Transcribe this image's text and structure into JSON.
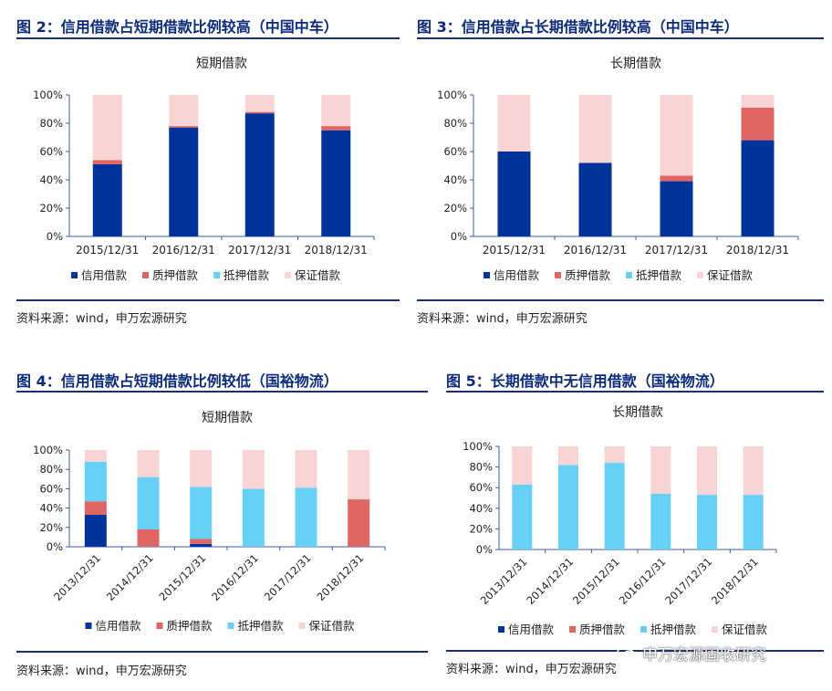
{
  "colors": {
    "title": "#0b2a7a",
    "rule": "#1b2f6e",
    "axis": "#3b5bab",
    "series": [
      "#003399",
      "#e06666",
      "#66d1f5",
      "#f9d4d4"
    ]
  },
  "panels": [
    {
      "fig_title": "图 2：信用借款占短期借款比例较高（中国中车）",
      "source": "资料来源：wind，申万宏源研究"
    },
    {
      "fig_title": "图 3：信用借款占长期借款比例较高（中国中车）",
      "source": "资料来源：wind，申万宏源研究"
    },
    {
      "fig_title": "图 4：信用借款占短期借款比例较低（国裕物流）",
      "source": "资料来源：wind，申万宏源研究"
    },
    {
      "fig_title": "图 5：长期借款中无信用借款（国裕物流）",
      "source": "资料来源：wind，申万宏源研究"
    }
  ],
  "watermark": "申万宏源固收研究",
  "chart_data": [
    {
      "type": "bar",
      "stacked": true,
      "title": "短期借款",
      "categories": [
        "2015/12/31",
        "2016/12/31",
        "2017/12/31",
        "2018/12/31"
      ],
      "y_ticks": [
        "0%",
        "20%",
        "40%",
        "60%",
        "80%",
        "100%"
      ],
      "ylim": [
        0,
        100
      ],
      "series": [
        {
          "name": "信用借款",
          "values": [
            51,
            77,
            87,
            75
          ]
        },
        {
          "name": "质押借款",
          "values": [
            3,
            1,
            1,
            3
          ]
        },
        {
          "name": "抵押借款",
          "values": [
            0,
            0,
            0,
            0
          ]
        },
        {
          "name": "保证借款",
          "values": [
            46,
            22,
            12,
            22
          ]
        }
      ],
      "legend": "bottom",
      "grid": false
    },
    {
      "type": "bar",
      "stacked": true,
      "title": "长期借款",
      "categories": [
        "2015/12/31",
        "2016/12/31",
        "2017/12/31",
        "2018/12/31"
      ],
      "y_ticks": [
        "0%",
        "20%",
        "40%",
        "60%",
        "80%",
        "100%"
      ],
      "ylim": [
        0,
        100
      ],
      "series": [
        {
          "name": "信用借款",
          "values": [
            60,
            52,
            39,
            68
          ]
        },
        {
          "name": "质押借款",
          "values": [
            0,
            0,
            4,
            23
          ]
        },
        {
          "name": "抵押借款",
          "values": [
            0,
            0,
            0,
            0
          ]
        },
        {
          "name": "保证借款",
          "values": [
            40,
            48,
            57,
            9
          ]
        }
      ],
      "legend": "bottom",
      "grid": false
    },
    {
      "type": "bar",
      "stacked": true,
      "title": "短期借款",
      "categories": [
        "2013/12/31",
        "2014/12/31",
        "2015/12/31",
        "2016/12/31",
        "2017/12/31",
        "2018/12/31"
      ],
      "y_ticks": [
        "0%",
        "20%",
        "40%",
        "60%",
        "80%",
        "100%"
      ],
      "ylim": [
        0,
        100
      ],
      "series": [
        {
          "name": "信用借款",
          "values": [
            33,
            0,
            3,
            0,
            0,
            0
          ]
        },
        {
          "name": "质押借款",
          "values": [
            14,
            18,
            5,
            0,
            0,
            49
          ]
        },
        {
          "name": "抵押借款",
          "values": [
            41,
            54,
            54,
            60,
            61,
            0
          ]
        },
        {
          "name": "保证借款",
          "values": [
            12,
            28,
            38,
            40,
            39,
            51
          ]
        }
      ],
      "legend": "bottom",
      "grid": false
    },
    {
      "type": "bar",
      "stacked": true,
      "title": "长期借款",
      "categories": [
        "2013/12/31",
        "2014/12/31",
        "2015/12/31",
        "2016/12/31",
        "2017/12/31",
        "2018/12/31"
      ],
      "y_ticks": [
        "0%",
        "20%",
        "40%",
        "60%",
        "80%",
        "100%"
      ],
      "ylim": [
        0,
        100
      ],
      "series": [
        {
          "name": "信用借款",
          "values": [
            0,
            0,
            0,
            0,
            0,
            0
          ]
        },
        {
          "name": "质押借款",
          "values": [
            0,
            0,
            0,
            0,
            0,
            0
          ]
        },
        {
          "name": "抵押借款",
          "values": [
            63,
            82,
            84,
            54,
            53,
            53
          ]
        },
        {
          "name": "保证借款",
          "values": [
            37,
            18,
            16,
            46,
            47,
            47
          ]
        }
      ],
      "legend": "bottom",
      "grid": false
    }
  ]
}
